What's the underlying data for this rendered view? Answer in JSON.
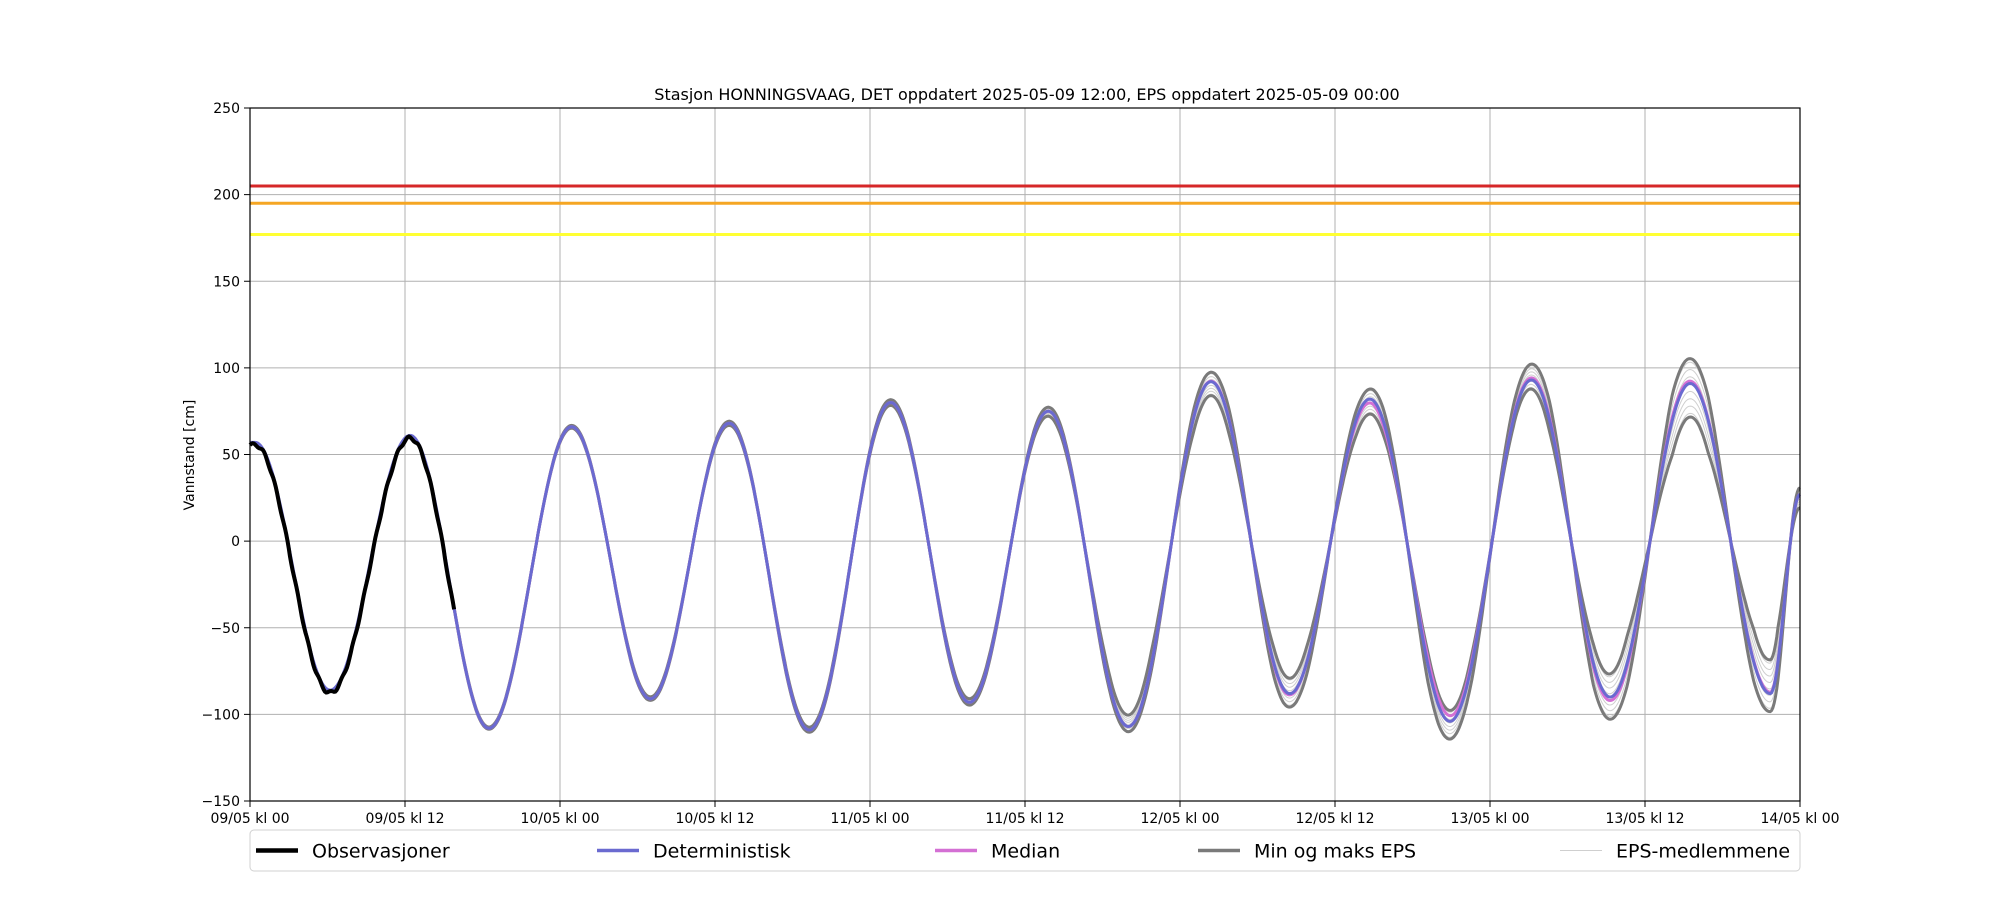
{
  "chart_data": {
    "type": "line",
    "title": "Stasjon HONNINGSVAAG, DET oppdatert 2025-05-09 12:00, EPS oppdatert 2025-05-09 00:00",
    "xlabel": "",
    "ylabel": "Vannstand [cm]",
    "x_unit": "hours since 09/05 kl 00",
    "xlim": [
      0,
      120
    ],
    "ylim": [
      -150,
      250
    ],
    "grid": true,
    "legend_position": "bottom",
    "x_ticks": [
      {
        "x": 0,
        "label": "09/05 kl 00"
      },
      {
        "x": 12,
        "label": "09/05 kl 12"
      },
      {
        "x": 24,
        "label": "10/05 kl 00"
      },
      {
        "x": 36,
        "label": "10/05 kl 12"
      },
      {
        "x": 48,
        "label": "11/05 kl 00"
      },
      {
        "x": 60,
        "label": "11/05 kl 12"
      },
      {
        "x": 72,
        "label": "12/05 kl 00"
      },
      {
        "x": 84,
        "label": "12/05 kl 12"
      },
      {
        "x": 96,
        "label": "13/05 kl 00"
      },
      {
        "x": 108,
        "label": "13/05 kl 12"
      },
      {
        "x": 120,
        "label": "14/05 kl 00"
      }
    ],
    "y_ticks": [
      250,
      200,
      150,
      100,
      50,
      0,
      -50,
      -100,
      -150
    ],
    "thresholds": [
      {
        "value": 205,
        "color": "#d62728"
      },
      {
        "value": 195,
        "color": "#f5a623"
      },
      {
        "value": 177,
        "color": "#ffff33"
      }
    ],
    "extrema": [
      {
        "x": 0.4,
        "y": 57
      },
      {
        "x": 6.2,
        "y": -86
      },
      {
        "x": 12.4,
        "y": 61
      },
      {
        "x": 18.5,
        "y": -108
      },
      {
        "x": 24.9,
        "y": 66
      },
      {
        "x": 31.0,
        "y": -91
      },
      {
        "x": 37.1,
        "y": 68
      },
      {
        "x": 43.3,
        "y": -109
      },
      {
        "x": 49.6,
        "y": 80
      },
      {
        "x": 55.7,
        "y": -93
      },
      {
        "x": 61.8,
        "y": 75
      },
      {
        "x": 68.0,
        "y": -107
      },
      {
        "x": 74.4,
        "y": 92
      },
      {
        "x": 80.5,
        "y": -88
      },
      {
        "x": 86.7,
        "y": 82
      },
      {
        "x": 92.9,
        "y": -104
      },
      {
        "x": 99.2,
        "y": 93
      },
      {
        "x": 105.3,
        "y": -90
      },
      {
        "x": 111.5,
        "y": 91
      },
      {
        "x": 117.7,
        "y": -88
      },
      {
        "x": 120,
        "y": 27
      }
    ],
    "observed_until_x": 15.8,
    "eps_min_offset": [
      {
        "x": 0,
        "d": 0
      },
      {
        "x": 60,
        "d": -2
      },
      {
        "x": 72,
        "d": -8
      },
      {
        "x": 80,
        "d": -8
      },
      {
        "x": 86,
        "d": -9
      },
      {
        "x": 92,
        "d": -6
      },
      {
        "x": 98,
        "d": -4
      },
      {
        "x": 104,
        "d": -10
      },
      {
        "x": 110,
        "d": -20
      },
      {
        "x": 117,
        "d": -17
      },
      {
        "x": 120,
        "d": -20
      }
    ],
    "eps_max_offset": [
      {
        "x": 0,
        "d": 0
      },
      {
        "x": 60,
        "d": 2
      },
      {
        "x": 72,
        "d": 4
      },
      {
        "x": 80,
        "d": 9
      },
      {
        "x": 86,
        "d": 5
      },
      {
        "x": 92,
        "d": 12
      },
      {
        "x": 98,
        "d": 8
      },
      {
        "x": 104,
        "d": 14
      },
      {
        "x": 110,
        "d": 15
      },
      {
        "x": 117,
        "d": 12
      },
      {
        "x": 120,
        "d": 10
      }
    ],
    "median_offset": [
      {
        "x": 0,
        "d": 0
      },
      {
        "x": 72,
        "d": 0
      },
      {
        "x": 80,
        "d": 1
      },
      {
        "x": 86,
        "d": -2
      },
      {
        "x": 92,
        "d": -4
      },
      {
        "x": 98,
        "d": 1
      },
      {
        "x": 104,
        "d": 2
      },
      {
        "x": 110,
        "d": 2
      },
      {
        "x": 117,
        "d": -1
      },
      {
        "x": 120,
        "d": 0
      }
    ],
    "series": [
      {
        "name": "Observasjoner",
        "color": "#000000",
        "width": 4
      },
      {
        "name": "Deterministisk",
        "color": "#6a6ad0",
        "width": 3
      },
      {
        "name": "Median",
        "color": "#d470d4",
        "width": 3
      },
      {
        "name": "Min og maks EPS",
        "color": "#7a7a7a",
        "width": 3
      },
      {
        "name": "EPS-medlemmene",
        "color": "#cfcfcf",
        "width": 1
      }
    ]
  }
}
